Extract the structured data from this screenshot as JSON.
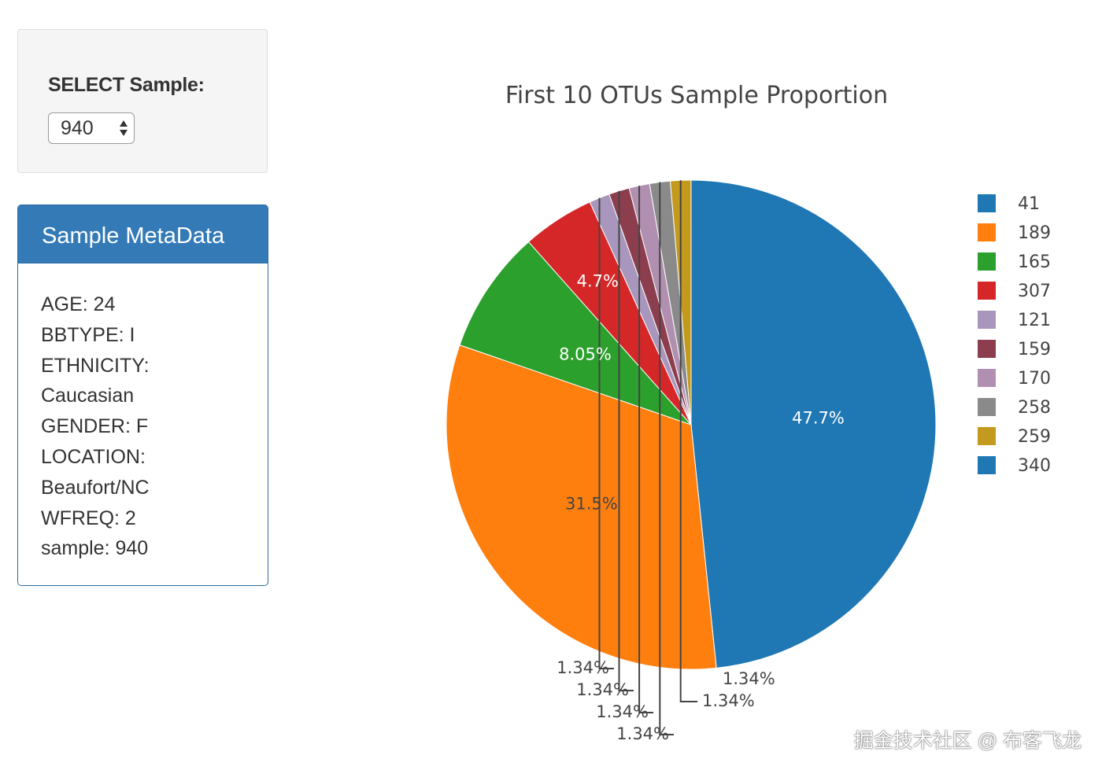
{
  "selector": {
    "label": "SELECT Sample:",
    "value": "940"
  },
  "metadata_panel": {
    "title": "Sample MetaData",
    "lines": [
      "AGE: 24",
      "BBTYPE: I",
      "ETHNICITY:",
      "Caucasian",
      "GENDER: F",
      "LOCATION:",
      "Beaufort/NC",
      "WFREQ: 2",
      "sample: 940"
    ]
  },
  "chart_data": {
    "type": "pie",
    "title": "First 10 OTUs Sample Proportion",
    "legend_placement": "right",
    "slices": [
      {
        "label": "41",
        "value": 47.7,
        "text": "47.7%",
        "color": "#1f77b4",
        "text_color": "#ffffff"
      },
      {
        "label": "189",
        "value": 31.5,
        "text": "31.5%",
        "color": "#ff7f0e",
        "text_color": "#444444"
      },
      {
        "label": "165",
        "value": 8.05,
        "text": "8.05%",
        "color": "#2ca02c",
        "text_color": "#ffffff"
      },
      {
        "label": "307",
        "value": 4.7,
        "text": "4.7%",
        "color": "#d62728",
        "text_color": "#ffffff"
      },
      {
        "label": "121",
        "value": 1.34,
        "text": "1.34%",
        "color": "#a996bd",
        "text_color": "#444444"
      },
      {
        "label": "159",
        "value": 1.34,
        "text": "1.34%",
        "color": "#8c3d4e",
        "text_color": "#444444"
      },
      {
        "label": "170",
        "value": 1.34,
        "text": "1.34%",
        "color": "#b18fb0",
        "text_color": "#444444"
      },
      {
        "label": "258",
        "value": 1.34,
        "text": "1.34%",
        "color": "#8a8a8a",
        "text_color": "#444444"
      },
      {
        "label": "259",
        "value": 1.34,
        "text": "1.34%",
        "color": "#c39a1e",
        "text_color": "#444444"
      },
      {
        "label": "340",
        "value": 0.001,
        "text": "",
        "color": "#1f77b4",
        "text_color": "#444444"
      }
    ]
  },
  "watermark": "掘金技术社区 @ 布客飞龙"
}
